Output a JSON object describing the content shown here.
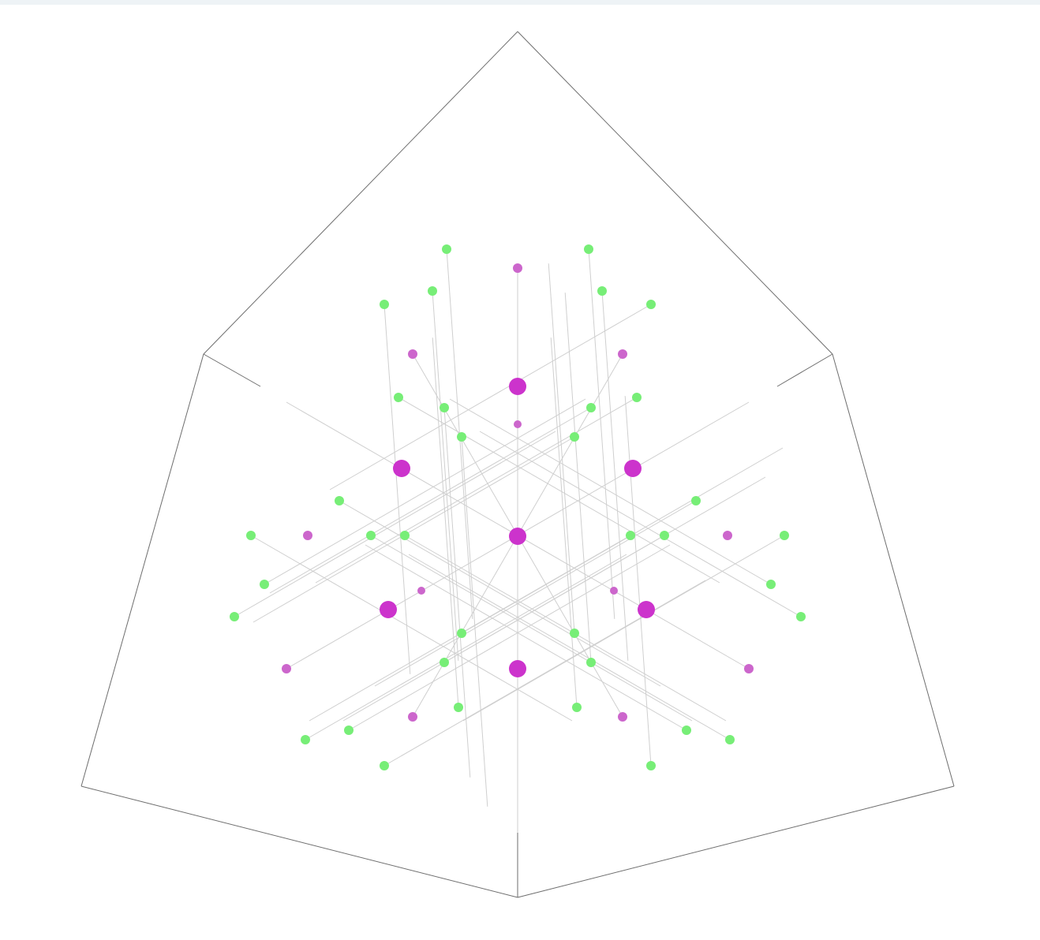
{
  "colors": {
    "background": "#ffffff",
    "toolbar_strip": "#eef3f6",
    "outline": "#6e6e6e",
    "guide_line": "#cfcfcf",
    "node_major": "#cc33cc",
    "node_minor": "#cc66cc",
    "node_green": "#77ee77"
  },
  "diagram": {
    "kind": "isometric-crystal-lattice",
    "node_groups": [
      "magenta-large",
      "magenta-small",
      "green"
    ]
  }
}
